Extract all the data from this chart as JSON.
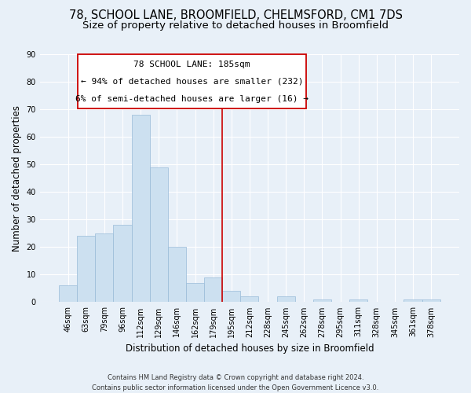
{
  "title": "78, SCHOOL LANE, BROOMFIELD, CHELMSFORD, CM1 7DS",
  "subtitle": "Size of property relative to detached houses in Broomfield",
  "xlabel": "Distribution of detached houses by size in Broomfield",
  "ylabel": "Number of detached properties",
  "bar_labels": [
    "46sqm",
    "63sqm",
    "79sqm",
    "96sqm",
    "112sqm",
    "129sqm",
    "146sqm",
    "162sqm",
    "179sqm",
    "195sqm",
    "212sqm",
    "228sqm",
    "245sqm",
    "262sqm",
    "278sqm",
    "295sqm",
    "311sqm",
    "328sqm",
    "345sqm",
    "361sqm",
    "378sqm"
  ],
  "bar_values": [
    6,
    24,
    25,
    28,
    68,
    49,
    20,
    7,
    9,
    4,
    2,
    0,
    2,
    0,
    1,
    0,
    1,
    0,
    0,
    1,
    1
  ],
  "bar_color": "#cce0f0",
  "bar_edge_color": "#99bbd8",
  "vline_color": "#cc0000",
  "ylim": [
    0,
    90
  ],
  "yticks": [
    0,
    10,
    20,
    30,
    40,
    50,
    60,
    70,
    80,
    90
  ],
  "annotation_title": "78 SCHOOL LANE: 185sqm",
  "annotation_line1": "← 94% of detached houses are smaller (232)",
  "annotation_line2": "6% of semi-detached houses are larger (16) →",
  "footer_line1": "Contains HM Land Registry data © Crown copyright and database right 2024.",
  "footer_line2": "Contains public sector information licensed under the Open Government Licence v3.0.",
  "background_color": "#e8f0f8",
  "grid_color": "#ffffff",
  "title_fontsize": 10.5,
  "subtitle_fontsize": 9.5,
  "axis_label_fontsize": 8.5,
  "tick_fontsize": 7,
  "footer_fontsize": 6,
  "ann_fontsize": 8
}
